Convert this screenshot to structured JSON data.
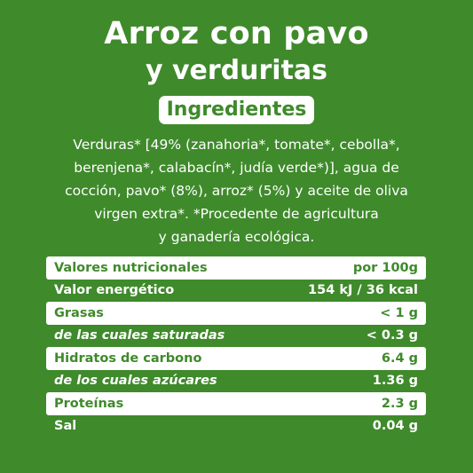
{
  "title": {
    "line1": "Arroz con pavo",
    "line2": "y verduritas"
  },
  "ingredients_badge": "Ingredientes",
  "ingredients_lines": [
    "Verduras* [49% (zanahoria*, tomate*, cebolla*,",
    "berenjena*, calabacín*, judía verde*)], agua de",
    "cocción, pavo* (8%), arroz* (5%) y aceite de oliva",
    "virgen extra*. *Procedente de agricultura",
    "y ganadería ecológica."
  ],
  "nutrition": {
    "rows": [
      {
        "label": "Valores nutricionales",
        "value": "por 100g"
      },
      {
        "label": "Valor energético",
        "value": "154 kJ / 36 kcal"
      },
      {
        "label": "Grasas",
        "value": "< 1 g"
      },
      {
        "label": "de las cuales saturadas",
        "value": "< 0.3 g"
      },
      {
        "label": "Hidratos de carbono",
        "value": "6.4 g"
      },
      {
        "label": "de los cuales azúcares",
        "value": "1.36 g"
      },
      {
        "label": "Proteínas",
        "value": "2.3 g"
      },
      {
        "label": "Sal",
        "value": "0.04 g"
      }
    ]
  },
  "colors": {
    "background": "#3f8a2b",
    "accent": "#ffffff"
  }
}
